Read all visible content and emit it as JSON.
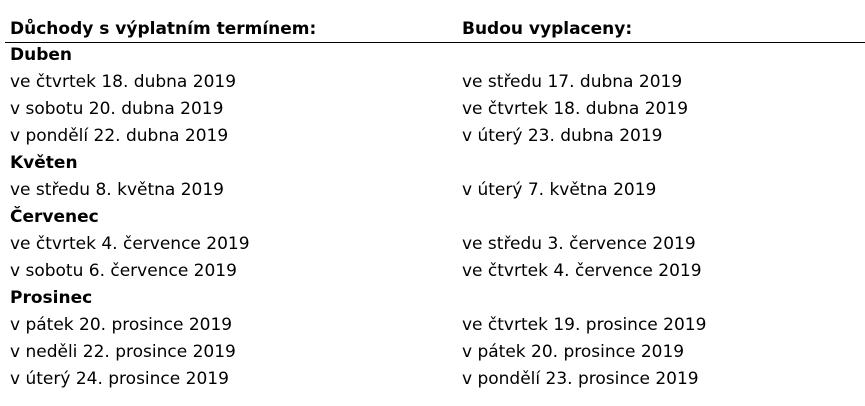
{
  "header": {
    "col1": "Důchody s výplatním termínem:",
    "col2": "Budou vyplaceny:"
  },
  "sections": [
    {
      "month": "Duben",
      "rows": [
        [
          "ve čtvrtek 18. dubna 2019",
          "ve středu 17. dubna 2019"
        ],
        [
          "v sobotu 20. dubna 2019",
          "ve čtvrtek 18. dubna 2019"
        ],
        [
          "v pondělí 22. dubna 2019",
          "v úterý 23. dubna 2019"
        ]
      ]
    },
    {
      "month": "Květen",
      "rows": [
        [
          "ve středu 8. května 2019",
          "v úterý 7. května 2019"
        ]
      ]
    },
    {
      "month": "Červenec",
      "rows": [
        [
          "ve čtvrtek 4. července 2019",
          "ve středu 3. července 2019"
        ],
        [
          "v sobotu 6. července 2019",
          "ve čtvrtek 4. července 2019"
        ]
      ]
    },
    {
      "month": "Prosinec",
      "rows": [
        [
          "v pátek 20. prosince 2019",
          "ve čtvrtek 19. prosince 2019"
        ],
        [
          "v neděli 22. prosince 2019",
          "v pátek 20. prosince 2019"
        ],
        [
          "v úterý 24. prosince 2019",
          "v pondělí 23. prosince 2019"
        ]
      ]
    }
  ]
}
